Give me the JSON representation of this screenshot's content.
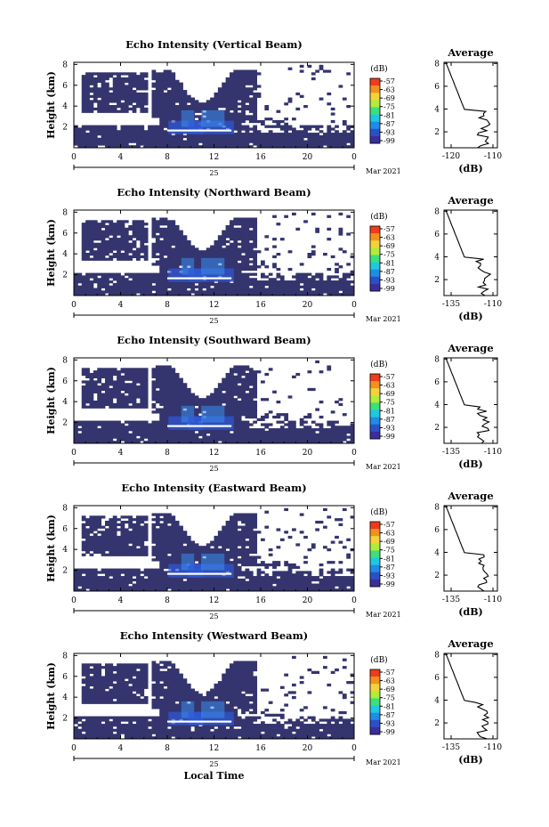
{
  "chart_data": [
    {
      "type": "heatmap",
      "title": "Echo Intensity (Vertical Beam)",
      "ylabel": "Height (km)",
      "x_ticks": [
        "0",
        "4",
        "8",
        "12",
        "16",
        "20",
        "0"
      ],
      "y_ticks": [
        "2",
        "4",
        "6",
        "8"
      ],
      "date_label": "25",
      "month_label": "Mar 2021",
      "colorbar": {
        "unit": "(dB)",
        "ticks": [
          "-57",
          "-63",
          "-69",
          "-75",
          "-81",
          "-87",
          "-93",
          "-99"
        ]
      },
      "profile": {
        "title": "Average",
        "xlabel": "(dB)",
        "x_ticks": [
          "-120",
          "-110"
        ],
        "y_ticks": [
          "2",
          "4",
          "6",
          "8"
        ]
      }
    },
    {
      "type": "heatmap",
      "title": "Echo Intensity (Northward Beam)",
      "ylabel": "Height (km)",
      "x_ticks": [
        "0",
        "4",
        "8",
        "12",
        "16",
        "20",
        "0"
      ],
      "y_ticks": [
        "2",
        "4",
        "6",
        "8"
      ],
      "date_label": "25",
      "month_label": "Mar 2021",
      "colorbar": {
        "unit": "(dB)",
        "ticks": [
          "-57",
          "-63",
          "-69",
          "-75",
          "-81",
          "-87",
          "-93",
          "-99"
        ]
      },
      "profile": {
        "title": "Average",
        "xlabel": "(dB)",
        "x_ticks": [
          "-135",
          "-110"
        ],
        "y_ticks": [
          "2",
          "4",
          "6",
          "8"
        ]
      }
    },
    {
      "type": "heatmap",
      "title": "Echo Intensity (Southward Beam)",
      "ylabel": "Height (km)",
      "x_ticks": [
        "0",
        "4",
        "8",
        "12",
        "16",
        "20",
        "0"
      ],
      "y_ticks": [
        "2",
        "4",
        "6",
        "8"
      ],
      "date_label": "25",
      "month_label": "Mar 2021",
      "colorbar": {
        "unit": "(dB)",
        "ticks": [
          "-57",
          "-63",
          "-69",
          "-75",
          "-81",
          "-87",
          "-93",
          "-99"
        ]
      },
      "profile": {
        "title": "Average",
        "xlabel": "(dB)",
        "x_ticks": [
          "-135",
          "-110"
        ],
        "y_ticks": [
          "2",
          "4",
          "6",
          "8"
        ]
      }
    },
    {
      "type": "heatmap",
      "title": "Echo Intensity (Eastward Beam)",
      "ylabel": "Height (km)",
      "x_ticks": [
        "0",
        "4",
        "8",
        "12",
        "16",
        "20",
        "0"
      ],
      "y_ticks": [
        "2",
        "4",
        "6",
        "8"
      ],
      "date_label": "25",
      "month_label": "Mar 2021",
      "colorbar": {
        "unit": "(dB)",
        "ticks": [
          "-57",
          "-63",
          "-69",
          "-75",
          "-81",
          "-87",
          "-93",
          "-99"
        ]
      },
      "profile": {
        "title": "Average",
        "xlabel": "(dB)",
        "x_ticks": [
          "-135",
          "-110"
        ],
        "y_ticks": [
          "2",
          "4",
          "6",
          "8"
        ]
      }
    },
    {
      "type": "heatmap",
      "title": "Echo Intensity (Westward Beam)",
      "ylabel": "Height (km)",
      "x_ticks": [
        "0",
        "4",
        "8",
        "12",
        "16",
        "20",
        "0"
      ],
      "y_ticks": [
        "2",
        "4",
        "6",
        "8"
      ],
      "date_label": "25",
      "month_label": "Mar 2021",
      "xlabel": "Local Time",
      "colorbar": {
        "unit": "(dB)",
        "ticks": [
          "-57",
          "-63",
          "-69",
          "-75",
          "-81",
          "-87",
          "-93",
          "-99"
        ]
      },
      "profile": {
        "title": "Average",
        "xlabel": "(dB)",
        "x_ticks": [
          "-135",
          "-110"
        ],
        "y_ticks": [
          "2",
          "4",
          "6",
          "8"
        ]
      }
    }
  ]
}
